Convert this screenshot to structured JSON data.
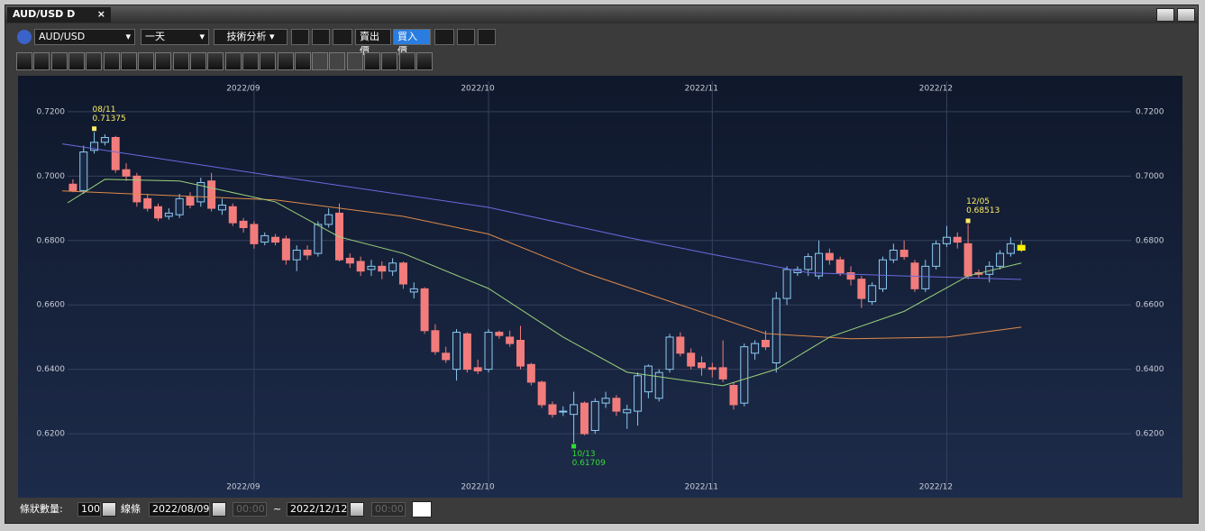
{
  "window": {
    "tab": "AUD/USD D",
    "tab_close": "×"
  },
  "toolbar": {
    "symbol": "AUD/USD",
    "period": "一天",
    "analysis": "技術分析",
    "sell": "賣出價",
    "buy": "買入價"
  },
  "footer": {
    "count_label": "條狀數量:",
    "count": 100,
    "line_label": "線條",
    "start_date": "2022/08/09",
    "start_time": "00:00",
    "separator": "~",
    "end_date": "2022/12/12",
    "end_time": "00:00"
  },
  "chart_data": {
    "type": "candlestick",
    "open": [
      0.6975,
      0.6955,
      0.708,
      0.7105,
      0.712,
      0.702,
      0.7,
      0.693,
      0.6905,
      0.6875,
      0.688,
      0.6935,
      0.692,
      0.6985,
      0.6895,
      0.6905,
      0.686,
      0.685,
      0.6795,
      0.681,
      0.6805,
      0.674,
      0.677,
      0.676,
      0.685,
      0.6885,
      0.6745,
      0.6735,
      0.671,
      0.672,
      0.6705,
      0.673,
      0.664,
      0.665,
      0.652,
      0.645,
      0.64,
      0.651,
      0.6405,
      0.64,
      0.6515,
      0.65,
      0.649,
      0.6415,
      0.636,
      0.629,
      0.627,
      0.626,
      0.6295,
      0.621,
      0.6295,
      0.631,
      0.6265,
      0.627,
      0.633,
      0.631,
      0.64,
      0.65,
      0.645,
      0.642,
      0.6405,
      0.6405,
      0.635,
      0.6295,
      0.645,
      0.649,
      0.642,
      0.662,
      0.67,
      0.671,
      0.669,
      0.676,
      0.674,
      0.67,
      0.668,
      0.661,
      0.665,
      0.674,
      0.677,
      0.673,
      0.665,
      0.672,
      0.679,
      0.681,
      0.679,
      0.67,
      0.6695,
      0.672,
      0.676,
      0.6785
    ],
    "high": [
      0.699,
      0.7095,
      0.71375,
      0.713,
      0.7125,
      0.704,
      0.701,
      0.6945,
      0.6915,
      0.69,
      0.6945,
      0.695,
      0.6995,
      0.701,
      0.693,
      0.6915,
      0.687,
      0.686,
      0.6825,
      0.682,
      0.6815,
      0.6785,
      0.6785,
      0.686,
      0.69,
      0.6915,
      0.676,
      0.675,
      0.674,
      0.6735,
      0.6745,
      0.6735,
      0.667,
      0.6655,
      0.654,
      0.647,
      0.6525,
      0.6515,
      0.643,
      0.6525,
      0.652,
      0.652,
      0.6535,
      0.642,
      0.6365,
      0.63,
      0.6285,
      0.633,
      0.63,
      0.631,
      0.633,
      0.632,
      0.629,
      0.639,
      0.6415,
      0.64,
      0.651,
      0.6515,
      0.6465,
      0.644,
      0.642,
      0.649,
      0.636,
      0.648,
      0.649,
      0.652,
      0.664,
      0.672,
      0.672,
      0.676,
      0.68,
      0.6775,
      0.675,
      0.672,
      0.669,
      0.667,
      0.675,
      0.679,
      0.68,
      0.674,
      0.674,
      0.68,
      0.6845,
      0.6825,
      0.68513,
      0.671,
      0.6735,
      0.677,
      0.681,
      0.68
    ],
    "low": [
      0.695,
      0.6945,
      0.707,
      0.7095,
      0.701,
      0.6985,
      0.6905,
      0.689,
      0.686,
      0.6865,
      0.687,
      0.69,
      0.6905,
      0.689,
      0.688,
      0.6845,
      0.6825,
      0.6775,
      0.6785,
      0.6785,
      0.6725,
      0.6705,
      0.674,
      0.675,
      0.684,
      0.6735,
      0.6715,
      0.669,
      0.669,
      0.668,
      0.669,
      0.665,
      0.662,
      0.651,
      0.6445,
      0.642,
      0.6365,
      0.639,
      0.6385,
      0.639,
      0.6495,
      0.647,
      0.64,
      0.635,
      0.628,
      0.625,
      0.6255,
      0.61709,
      0.6195,
      0.62,
      0.628,
      0.6255,
      0.6215,
      0.6225,
      0.631,
      0.63,
      0.639,
      0.644,
      0.64,
      0.638,
      0.6375,
      0.636,
      0.6275,
      0.6285,
      0.643,
      0.646,
      0.639,
      0.66,
      0.669,
      0.669,
      0.668,
      0.6725,
      0.669,
      0.666,
      0.659,
      0.66,
      0.664,
      0.673,
      0.674,
      0.664,
      0.664,
      0.671,
      0.678,
      0.6775,
      0.668,
      0.6685,
      0.667,
      0.671,
      0.675,
      0.6765
    ],
    "close": [
      0.6955,
      0.7075,
      0.7105,
      0.712,
      0.702,
      0.7,
      0.692,
      0.69,
      0.687,
      0.6885,
      0.693,
      0.691,
      0.698,
      0.69,
      0.691,
      0.6855,
      0.684,
      0.679,
      0.6815,
      0.6795,
      0.674,
      0.677,
      0.6755,
      0.685,
      0.688,
      0.674,
      0.673,
      0.6705,
      0.672,
      0.6705,
      0.673,
      0.6665,
      0.665,
      0.652,
      0.6455,
      0.643,
      0.6515,
      0.64,
      0.6395,
      0.6515,
      0.6505,
      0.648,
      0.641,
      0.636,
      0.629,
      0.626,
      0.627,
      0.629,
      0.62,
      0.63,
      0.631,
      0.627,
      0.6275,
      0.638,
      0.641,
      0.639,
      0.65,
      0.645,
      0.641,
      0.6405,
      0.64,
      0.637,
      0.629,
      0.647,
      0.648,
      0.647,
      0.662,
      0.671,
      0.671,
      0.675,
      0.676,
      0.674,
      0.67,
      0.668,
      0.662,
      0.666,
      0.674,
      0.677,
      0.675,
      0.665,
      0.672,
      0.679,
      0.681,
      0.6795,
      0.669,
      0.6695,
      0.672,
      0.676,
      0.679,
      0.677
    ],
    "up_color": "#8ccaf2",
    "down_color": "#f27c7c",
    "current_color": "#ffee00",
    "overlays": [
      {
        "color": "#6a6ae0",
        "x": [
          -1,
          0,
          19,
          39,
          52,
          60,
          69,
          78,
          89
        ],
        "values": [
          0.71,
          0.7095,
          0.7,
          0.6903,
          0.681,
          0.6757,
          0.67,
          0.669,
          0.6679
        ]
      },
      {
        "color": "#e08a4a",
        "x": [
          -1,
          19,
          31,
          39,
          48,
          57,
          65,
          73,
          82,
          89
        ],
        "values": [
          0.6954,
          0.6926,
          0.6875,
          0.682,
          0.67,
          0.66,
          0.6511,
          0.6495,
          0.65,
          0.6531
        ]
      },
      {
        "color": "#9ad07a",
        "x": [
          -0.5,
          3,
          10,
          19,
          25,
          31,
          39,
          46,
          52,
          61,
          66,
          71,
          78,
          84,
          89
        ],
        "values": [
          0.6917,
          0.699,
          0.6985,
          0.692,
          0.6811,
          0.676,
          0.6651,
          0.65,
          0.6391,
          0.6349,
          0.64,
          0.65,
          0.658,
          0.669,
          0.673
        ]
      }
    ],
    "annotations": [
      {
        "date": "08/11",
        "value": 0.71375,
        "color": "#ffee66"
      },
      {
        "date": "10/13",
        "value": 0.61709,
        "color": "#33dd33"
      },
      {
        "date": "12/05",
        "value": 0.68513,
        "color": "#ffee66"
      }
    ],
    "xlim": [
      -0.5,
      99.3
    ],
    "xticks": [
      {
        "value": 17,
        "label": "2022/09"
      },
      {
        "value": 39,
        "label": "2022/10"
      },
      {
        "value": 60,
        "label": "2022/11"
      },
      {
        "value": 82,
        "label": "2022/12"
      }
    ],
    "ylim": [
      0.6021,
      0.7295
    ],
    "yticks": [
      {
        "value": 0.62,
        "label": "0.6200"
      },
      {
        "value": 0.64,
        "label": "0.6400"
      },
      {
        "value": 0.66,
        "label": "0.6600"
      },
      {
        "value": 0.68,
        "label": "0.6800"
      },
      {
        "value": 0.7,
        "label": "0.7000"
      },
      {
        "value": 0.72,
        "label": "0.7200"
      }
    ],
    "grid": true
  }
}
